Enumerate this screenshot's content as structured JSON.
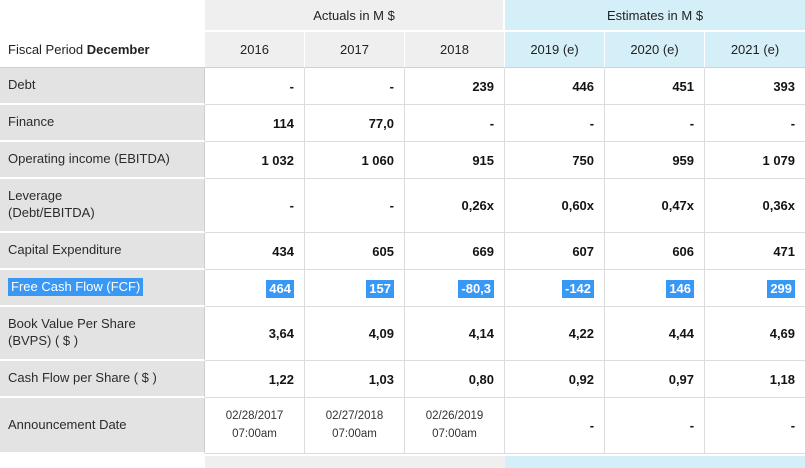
{
  "chart_data": {
    "type": "table",
    "title": "Fiscal Period December",
    "corner": {
      "prefix": "Fiscal Period ",
      "period": "December"
    },
    "column_groups": [
      {
        "label": "Actuals in M $",
        "span": 3
      },
      {
        "label": "Estimates in M $",
        "span": 3
      }
    ],
    "columns": [
      "2016",
      "2017",
      "2018",
      "2019 (e)",
      "2020 (e)",
      "2021 (e)"
    ],
    "rows": [
      {
        "label": "Debt",
        "values": [
          "-",
          "-",
          "239",
          "446",
          "451",
          "393"
        ]
      },
      {
        "label": "Finance",
        "values": [
          "114",
          "77,0",
          "-",
          "-",
          "-",
          "-"
        ]
      },
      {
        "label": "Operating income (EBITDA)",
        "values": [
          "1 032",
          "1 060",
          "915",
          "750",
          "959",
          "1 079"
        ]
      },
      {
        "label": "Leverage\n(Debt/EBITDA)",
        "values": [
          "-",
          "-",
          "0,26x",
          "0,60x",
          "0,47x",
          "0,36x"
        ]
      },
      {
        "label": "Capital Expenditure",
        "values": [
          "434",
          "605",
          "669",
          "607",
          "606",
          "471"
        ]
      },
      {
        "label": "Free Cash Flow (FCF)",
        "highlighted": true,
        "values": [
          "464",
          "157",
          "-80,3",
          "-142",
          "146",
          "299"
        ]
      },
      {
        "label": "Book Value Per Share\n(BVPS) ( $ )",
        "values": [
          "3,64",
          "4,09",
          "4,14",
          "4,22",
          "4,44",
          "4,69"
        ]
      },
      {
        "label": "Cash Flow per Share ( $ )",
        "values": [
          "1,22",
          "1,03",
          "0,80",
          "0,92",
          "0,97",
          "1,18"
        ]
      },
      {
        "label": "Announcement Date",
        "values": [
          "02/28/2017\n07:00am",
          "02/27/2018\n07:00am",
          "02/26/2019\n07:00am",
          "-",
          "-",
          "-"
        ]
      }
    ],
    "colors": {
      "actuals_header_bg": "#efefef",
      "estimates_header_bg": "#d5eff8",
      "row_label_bg": "#e3e3e3",
      "highlight_bg": "#3898f6",
      "highlight_text": "#ffffff"
    }
  }
}
